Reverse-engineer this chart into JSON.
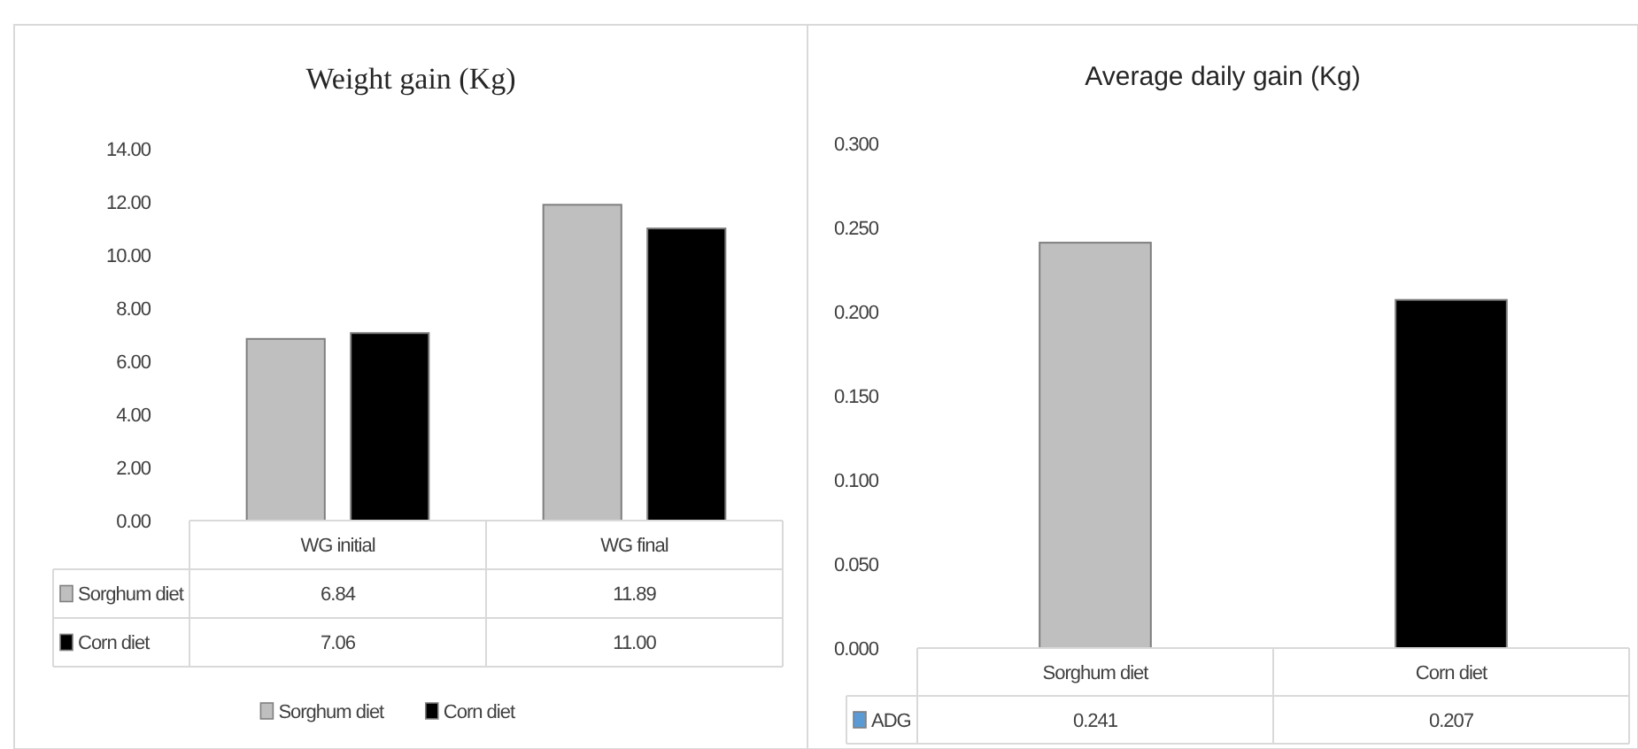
{
  "chart_data": [
    {
      "type": "bar",
      "title": "Weight gain (Kg)",
      "categories": [
        "WG initial",
        "WG final"
      ],
      "series": [
        {
          "name": "Sorghum diet",
          "color": "#bfbfbf",
          "values": [
            6.84,
            11.89
          ],
          "value_labels": [
            "6.84",
            "11.89"
          ]
        },
        {
          "name": "Corn diet",
          "color": "#000000",
          "values": [
            7.06,
            11.0
          ],
          "value_labels": [
            "7.06",
            "11.00"
          ]
        }
      ],
      "ylim": [
        0,
        14
      ],
      "yticks": [
        {
          "value": 0,
          "label": "0.00"
        },
        {
          "value": 2,
          "label": "2.00"
        },
        {
          "value": 4,
          "label": "4.00"
        },
        {
          "value": 6,
          "label": "6.00"
        },
        {
          "value": 8,
          "label": "8.00"
        },
        {
          "value": 10,
          "label": "10.00"
        },
        {
          "value": 12,
          "label": "12.00"
        },
        {
          "value": 14,
          "label": "14.00"
        }
      ],
      "legend": "bottom"
    },
    {
      "type": "bar",
      "title": "Average daily gain (Kg)",
      "categories": [
        "Sorghum diet",
        "Corn diet"
      ],
      "series": [
        {
          "name": "ADG",
          "color": "#5b9bd5",
          "colors": [
            "#bfbfbf",
            "#000000"
          ],
          "values": [
            0.241,
            0.207
          ],
          "value_labels": [
            "0.241",
            "0.207"
          ]
        }
      ],
      "ylim": [
        0,
        0.3
      ],
      "yticks": [
        {
          "value": 0,
          "label": "0.000"
        },
        {
          "value": 0.05,
          "label": "0.050"
        },
        {
          "value": 0.1,
          "label": "0.100"
        },
        {
          "value": 0.15,
          "label": "0.150"
        },
        {
          "value": 0.2,
          "label": "0.200"
        },
        {
          "value": 0.25,
          "label": "0.250"
        },
        {
          "value": 0.3,
          "label": "0.300"
        }
      ]
    }
  ]
}
